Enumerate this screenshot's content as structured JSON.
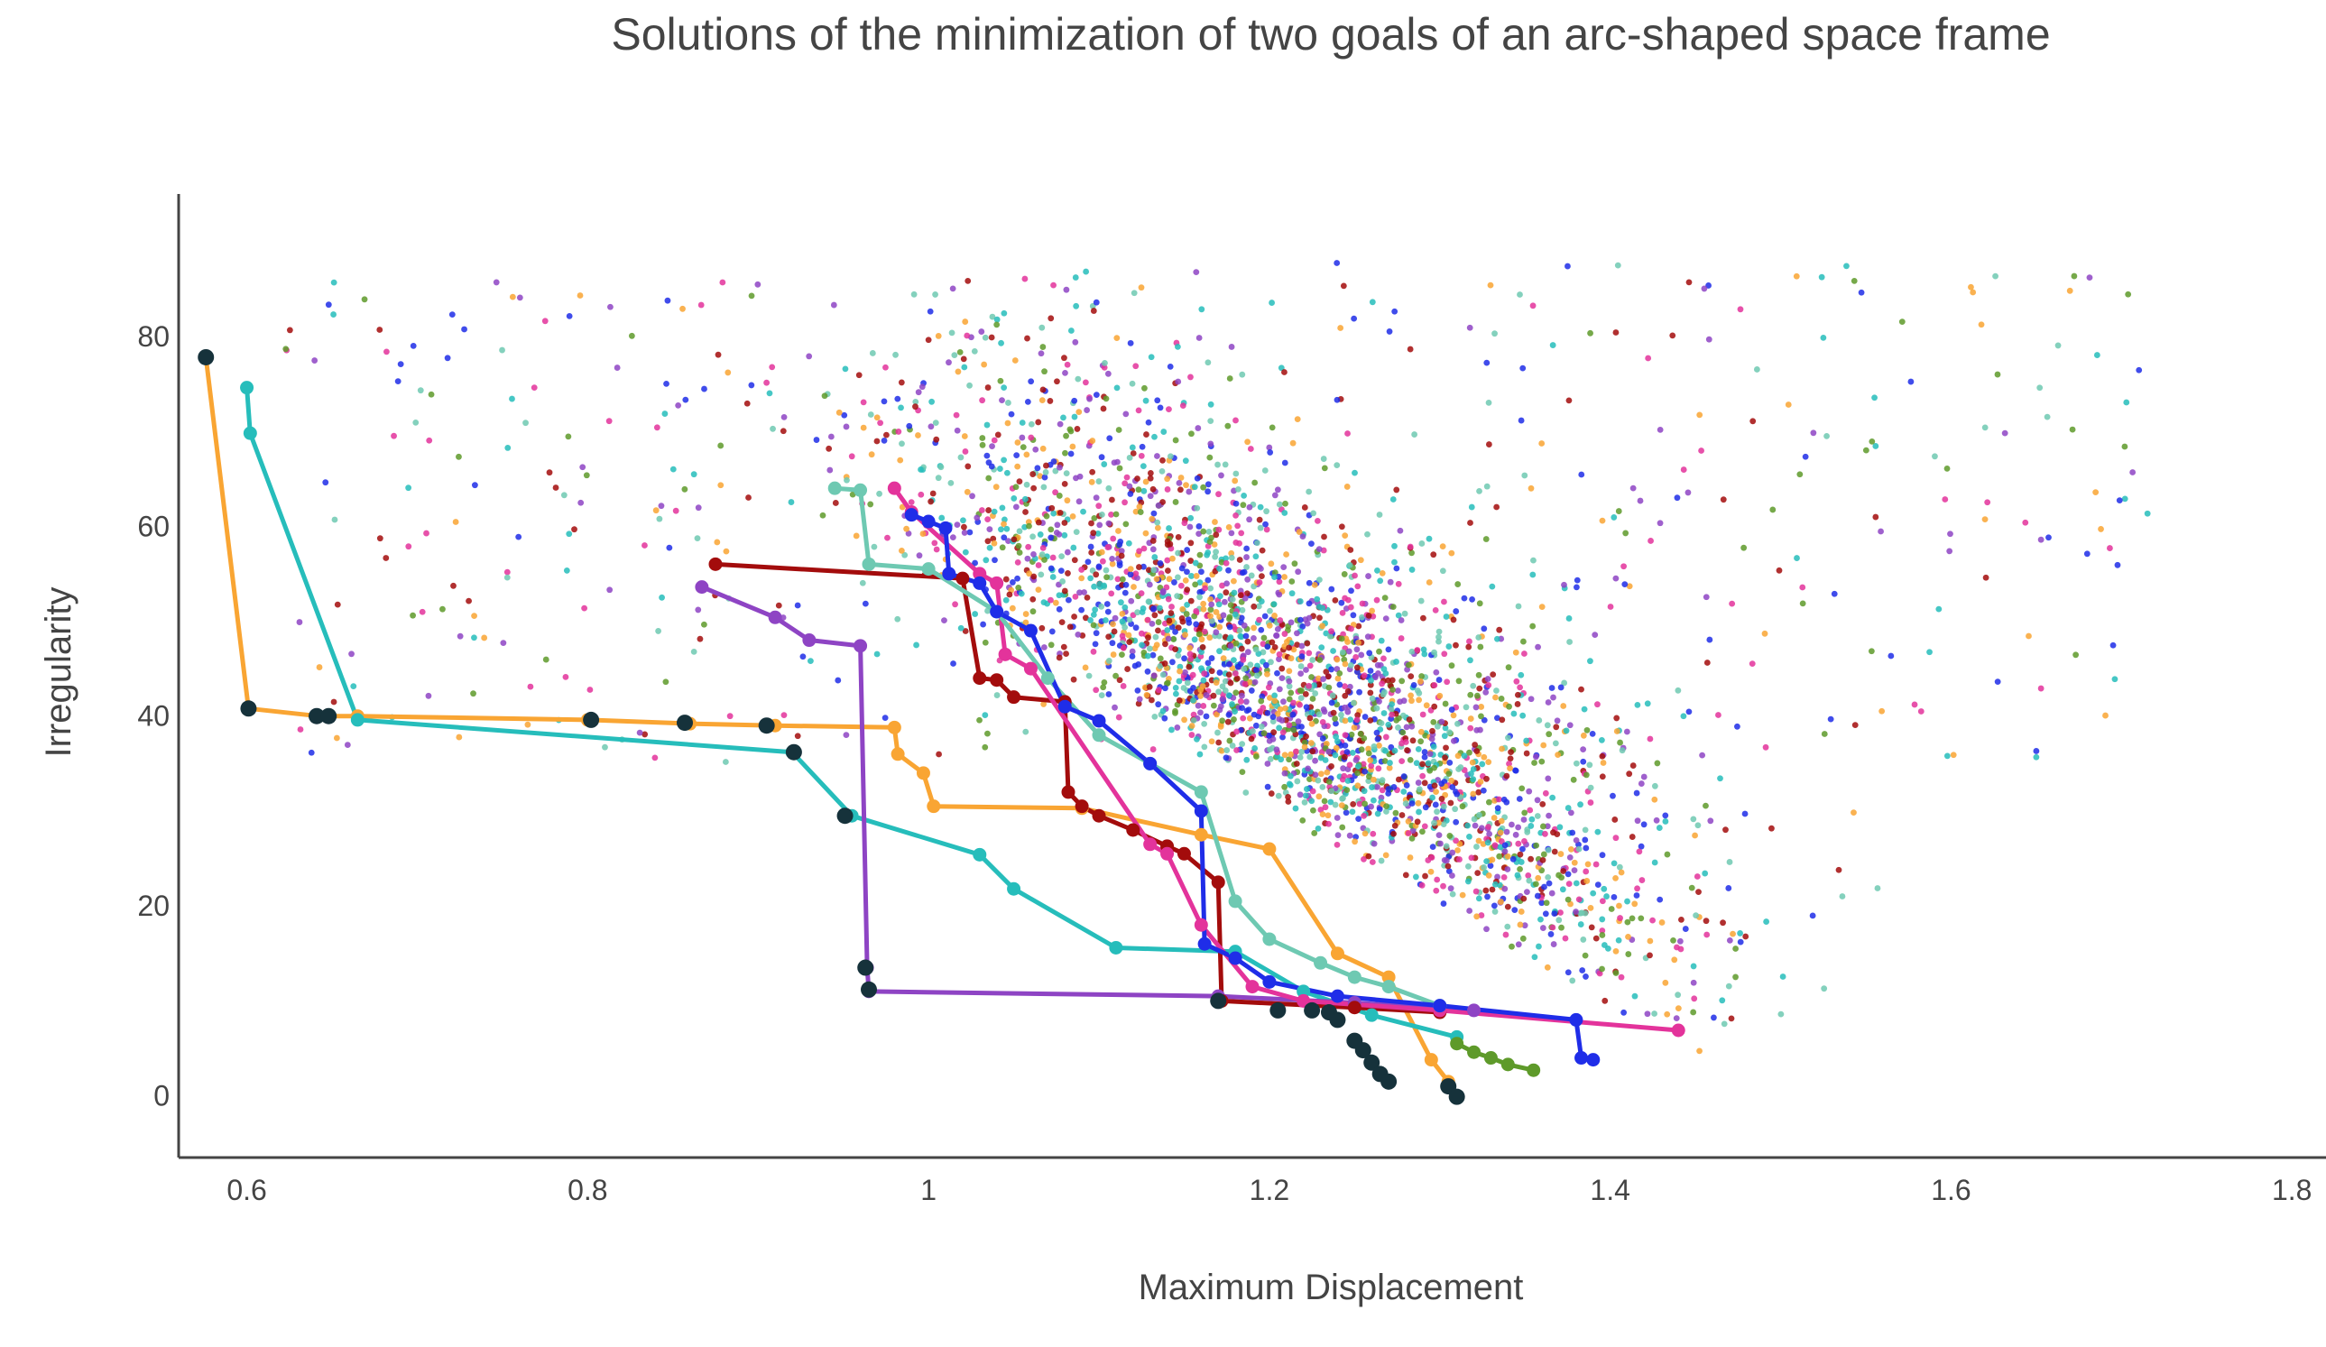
{
  "chart_data": {
    "type": "scatter",
    "title": "Solutions of the minimization of two goals of an arc-shaped space frame",
    "xlabel": "Maximum Displacement",
    "ylabel": "Irregularity",
    "xlim": [
      0.56,
      1.82
    ],
    "ylim": [
      -6.5,
      95
    ],
    "x_ticks": [
      0.6,
      0.8,
      1.0,
      1.2,
      1.4,
      1.6,
      1.8
    ],
    "x_tick_labels": [
      "0.6",
      "0.8",
      "1",
      "1.2",
      "1.4",
      "1.6",
      "1.8"
    ],
    "y_ticks": [
      0,
      20,
      40,
      60,
      80
    ],
    "y_tick_labels": [
      "0",
      "20",
      "40",
      "60",
      "80"
    ],
    "grid": false,
    "legend": "none",
    "series": [
      {
        "color": "#f9a533",
        "front": [
          [
            0.576,
            77.8
          ],
          [
            0.601,
            40.8
          ],
          [
            0.642,
            40.0
          ],
          [
            0.665,
            40.0
          ],
          [
            0.8,
            39.6
          ],
          [
            0.86,
            39.2
          ],
          [
            0.91,
            39.0
          ],
          [
            0.98,
            38.8
          ],
          [
            0.982,
            36.0
          ],
          [
            0.997,
            34.0
          ],
          [
            1.003,
            30.5
          ],
          [
            1.09,
            30.3
          ],
          [
            1.16,
            27.5
          ],
          [
            1.2,
            26.0
          ],
          [
            1.24,
            15.0
          ],
          [
            1.27,
            12.5
          ],
          [
            1.295,
            3.8
          ],
          [
            1.305,
            1.5
          ]
        ]
      },
      {
        "color": "#26bdbb",
        "front": [
          [
            0.6,
            74.6
          ],
          [
            0.602,
            69.8
          ],
          [
            0.665,
            39.6
          ],
          [
            0.92,
            36.2
          ],
          [
            0.955,
            29.5
          ],
          [
            1.03,
            25.4
          ],
          [
            1.05,
            21.8
          ],
          [
            1.11,
            15.6
          ],
          [
            1.18,
            15.2
          ],
          [
            1.22,
            11.0
          ],
          [
            1.26,
            8.5
          ],
          [
            1.31,
            6.2
          ]
        ]
      },
      {
        "color": "#8e44c4",
        "front": [
          [
            0.867,
            53.6
          ],
          [
            0.91,
            50.4
          ],
          [
            0.93,
            48.0
          ],
          [
            0.96,
            47.4
          ],
          [
            0.964,
            13.5
          ],
          [
            0.965,
            11.0
          ],
          [
            1.17,
            10.5
          ],
          [
            1.25,
            9.8
          ],
          [
            1.32,
            9.0
          ]
        ]
      },
      {
        "color": "#a30c0c",
        "front": [
          [
            0.875,
            56.0
          ],
          [
            1.02,
            54.5
          ],
          [
            1.03,
            44.0
          ],
          [
            1.04,
            43.8
          ],
          [
            1.05,
            42.0
          ],
          [
            1.08,
            41.5
          ],
          [
            1.082,
            32.0
          ],
          [
            1.09,
            30.5
          ],
          [
            1.1,
            29.5
          ],
          [
            1.12,
            28.0
          ],
          [
            1.14,
            26.3
          ],
          [
            1.15,
            25.5
          ],
          [
            1.17,
            22.5
          ],
          [
            1.172,
            10.0
          ],
          [
            1.25,
            9.3
          ],
          [
            1.3,
            8.8
          ]
        ]
      },
      {
        "color": "#e3339b",
        "front": [
          [
            0.98,
            64.0
          ],
          [
            0.99,
            61.5
          ],
          [
            1.03,
            55.0
          ],
          [
            1.04,
            54.0
          ],
          [
            1.045,
            46.5
          ],
          [
            1.06,
            45.0
          ],
          [
            1.13,
            26.5
          ],
          [
            1.14,
            25.5
          ],
          [
            1.16,
            18.0
          ],
          [
            1.19,
            11.5
          ],
          [
            1.22,
            10.0
          ],
          [
            1.3,
            9.0
          ],
          [
            1.44,
            6.9
          ]
        ]
      },
      {
        "color": "#6ec9b2",
        "front": [
          [
            0.945,
            64.0
          ],
          [
            0.96,
            63.8
          ],
          [
            0.965,
            56.0
          ],
          [
            1.0,
            55.5
          ],
          [
            1.04,
            51.0
          ],
          [
            1.07,
            44.0
          ],
          [
            1.1,
            38.0
          ],
          [
            1.13,
            35.0
          ],
          [
            1.16,
            32.0
          ],
          [
            1.18,
            20.5
          ],
          [
            1.2,
            16.5
          ],
          [
            1.23,
            14.0
          ],
          [
            1.25,
            12.5
          ],
          [
            1.27,
            11.5
          ],
          [
            1.3,
            9.5
          ]
        ]
      },
      {
        "color": "#1f2de8",
        "front": [
          [
            0.99,
            61.2
          ],
          [
            1.0,
            60.5
          ],
          [
            1.01,
            59.8
          ],
          [
            1.012,
            55.0
          ],
          [
            1.03,
            54.0
          ],
          [
            1.04,
            51.0
          ],
          [
            1.06,
            49.0
          ],
          [
            1.08,
            41.0
          ],
          [
            1.1,
            39.5
          ],
          [
            1.13,
            35.0
          ],
          [
            1.16,
            30.0
          ],
          [
            1.162,
            16.0
          ],
          [
            1.18,
            14.5
          ],
          [
            1.2,
            12.0
          ],
          [
            1.24,
            10.5
          ],
          [
            1.3,
            9.5
          ],
          [
            1.38,
            8.0
          ],
          [
            1.383,
            4.0
          ],
          [
            1.39,
            3.8
          ]
        ]
      },
      {
        "color": "#5e9a2a",
        "front": [
          [
            1.31,
            5.5
          ],
          [
            1.32,
            4.6
          ],
          [
            1.33,
            4.0
          ],
          [
            1.34,
            3.3
          ],
          [
            1.355,
            2.7
          ]
        ]
      },
      {
        "color": "#16323b",
        "front_points_only": true,
        "front": [
          [
            0.576,
            77.8
          ],
          [
            0.601,
            40.8
          ],
          [
            0.641,
            40.0
          ],
          [
            0.648,
            40.0
          ],
          [
            0.802,
            39.6
          ],
          [
            0.857,
            39.3
          ],
          [
            0.905,
            39.0
          ],
          [
            0.921,
            36.2
          ],
          [
            0.951,
            29.5
          ],
          [
            0.963,
            13.5
          ],
          [
            0.965,
            11.2
          ],
          [
            1.17,
            10.0
          ],
          [
            1.205,
            9.0
          ],
          [
            1.225,
            9.0
          ],
          [
            1.235,
            8.8
          ],
          [
            1.24,
            8.0
          ],
          [
            1.25,
            5.8
          ],
          [
            1.255,
            4.8
          ],
          [
            1.26,
            3.5
          ],
          [
            1.265,
            2.3
          ],
          [
            1.27,
            1.5
          ],
          [
            1.305,
            1.0
          ],
          [
            1.31,
            -0.1
          ]
        ]
      }
    ]
  }
}
